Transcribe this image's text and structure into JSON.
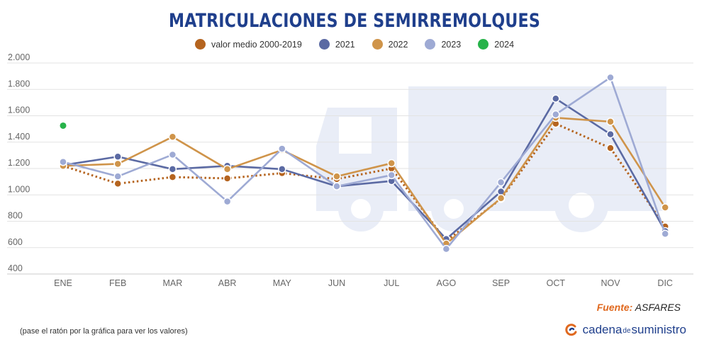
{
  "header": {
    "title": "MATRICULACIONES DE SEMIRREMOLQUES"
  },
  "chart_data": {
    "type": "line",
    "title": "MATRICULACIONES DE SEMIRREMOLQUES",
    "categories": [
      "ENE",
      "FEB",
      "MAR",
      "ABR",
      "MAY",
      "JUN",
      "JUL",
      "AGO",
      "SEP",
      "OCT",
      "NOV",
      "DIC"
    ],
    "ylim": [
      400,
      2000
    ],
    "yticks": [
      400,
      600,
      800,
      1000,
      1200,
      1400,
      1600,
      1800,
      2000
    ],
    "ytick_labels": [
      "400",
      "600",
      "800",
      "1.000",
      "1.200",
      "1.400",
      "1.600",
      "1.800",
      "2.000"
    ],
    "grid": true,
    "legend_position": "top",
    "series": [
      {
        "name": "valor medio 2000-2019",
        "color": "#b5641f",
        "dashed": true,
        "values": [
          1220,
          1085,
          1135,
          1125,
          1165,
          1120,
          1200,
          650,
          970,
          1540,
          1355,
          760
        ]
      },
      {
        "name": "2021",
        "color": "#5b6aa3",
        "dashed": false,
        "values": [
          1225,
          1290,
          1195,
          1220,
          1195,
          1065,
          1105,
          665,
          1025,
          1730,
          1460,
          725
        ]
      },
      {
        "name": "2022",
        "color": "#cf944a",
        "dashed": false,
        "values": [
          1220,
          1235,
          1440,
          1195,
          1340,
          1140,
          1240,
          630,
          975,
          1585,
          1555,
          905
        ]
      },
      {
        "name": "2023",
        "color": "#9eaad4",
        "dashed": false,
        "values": [
          1250,
          1140,
          1305,
          950,
          1350,
          1065,
          1150,
          590,
          1095,
          1610,
          1890,
          705
        ]
      },
      {
        "name": "2024",
        "color": "#27b34a",
        "dashed": false,
        "values": [
          1525,
          null,
          null,
          null,
          null,
          null,
          null,
          null,
          null,
          null,
          null,
          null
        ]
      }
    ]
  },
  "footer": {
    "source_label": "Fuente:",
    "source_value": "ASFARES",
    "note": "(pase el ratón por la gráfica para ver los valores)",
    "brand_a": "cadena",
    "brand_b": "de",
    "brand_c": "suministro"
  },
  "colors": {
    "title": "#1f3f8c",
    "grid": "#e3e3e3",
    "watermark": "#e9edf7",
    "source_label": "#e0691f"
  }
}
